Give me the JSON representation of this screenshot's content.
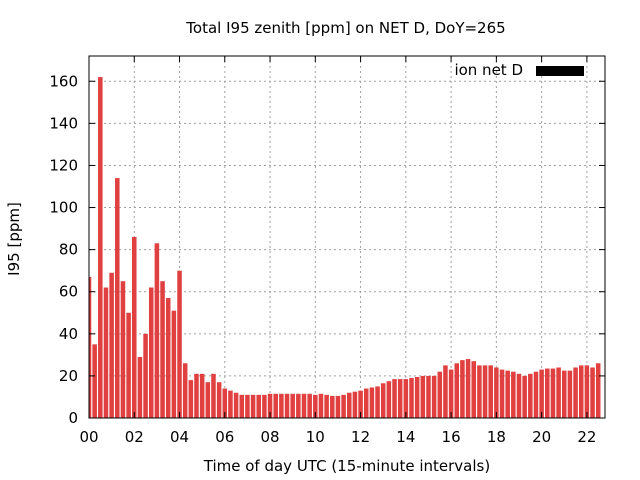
{
  "chart_data": {
    "type": "bar",
    "title": "Total I95 zenith [ppm] on NET D, DoY=265",
    "xlabel": "Time of day UTC (15-minute intervals)",
    "ylabel": "I95 [ppm]",
    "ylim": [
      0,
      172
    ],
    "xlim": [
      0,
      22.8
    ],
    "yticks": [
      0,
      20,
      40,
      60,
      80,
      100,
      120,
      140,
      160
    ],
    "xticks": [
      {
        "value": 0,
        "label": "00"
      },
      {
        "value": 2,
        "label": "02"
      },
      {
        "value": 4,
        "label": "04"
      },
      {
        "value": 6,
        "label": "06"
      },
      {
        "value": 8,
        "label": "08"
      },
      {
        "value": 10,
        "label": "10"
      },
      {
        "value": 12,
        "label": "12"
      },
      {
        "value": 14,
        "label": "14"
      },
      {
        "value": 16,
        "label": "16"
      },
      {
        "value": 18,
        "label": "18"
      },
      {
        "value": 20,
        "label": "20"
      },
      {
        "value": 22,
        "label": "22"
      }
    ],
    "grid": true,
    "legend_position": "top-right",
    "series": [
      {
        "name": "ion net D",
        "color": "#e04040",
        "legend_color": "#000000",
        "interval_hours": 0.25,
        "values": [
          67,
          35,
          162,
          62,
          69,
          114,
          65,
          50,
          86,
          29,
          40,
          62,
          83,
          65,
          57,
          51,
          70,
          26,
          18,
          21,
          21,
          17,
          21,
          17,
          14,
          13,
          12,
          11,
          11,
          11,
          11,
          11,
          11.5,
          11.5,
          11.5,
          11.5,
          11.5,
          11.5,
          11.5,
          11.5,
          11,
          11.5,
          11,
          10.5,
          10.5,
          11,
          12,
          12.5,
          13,
          14,
          14.5,
          15,
          16.5,
          17.5,
          18.5,
          18.5,
          18.5,
          19,
          19.5,
          20,
          20,
          20,
          22,
          25,
          23,
          26,
          27.5,
          28,
          27,
          25,
          25,
          25,
          24,
          23,
          22.5,
          22,
          21,
          20,
          21,
          22,
          23,
          23.5,
          23.5,
          24,
          22.5,
          22.5,
          24,
          25,
          25,
          24,
          26
        ]
      }
    ]
  }
}
